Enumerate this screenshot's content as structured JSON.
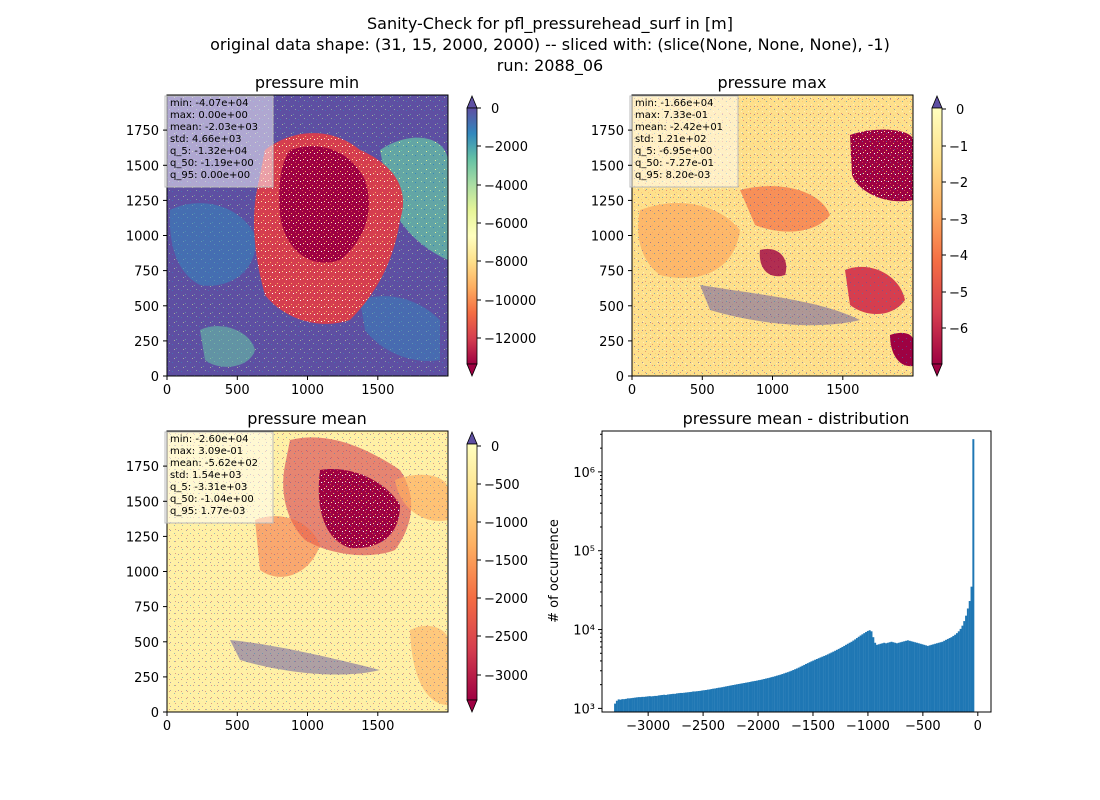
{
  "suptitle": {
    "line1": "Sanity-Check for pfl_pressurehead_surf in [m]",
    "line2": "original data shape: (31, 15, 2000, 2000) -- sliced with: (slice(None, None, None), -1)",
    "line3": "run: 2088_06"
  },
  "chart_data": [
    {
      "type": "heatmap",
      "title": "pressure min",
      "x_ticks": [
        "0",
        "500",
        "1000",
        "1500"
      ],
      "y_ticks": [
        "0",
        "250",
        "500",
        "750",
        "1000",
        "1250",
        "1500",
        "1750"
      ],
      "xlim": [
        0,
        2000
      ],
      "ylim": [
        0,
        2000
      ],
      "colormap": "Spectral",
      "colorbar_range": [
        -13500,
        0
      ],
      "colorbar_extend": "both",
      "colorbar_ticks": [
        0,
        -2000,
        -4000,
        -6000,
        -8000,
        -10000,
        -12000
      ],
      "colorbar_tick_labels": [
        "0",
        "−2000",
        "−4000",
        "−6000",
        "−8000",
        "−10000",
        "−12000"
      ],
      "stats": [
        "min: -4.07e+04",
        "max: 0.00e+00",
        "mean: -2.03e+03",
        "std: 4.66e+03",
        "q_5: -1.32e+04",
        "q_50: -1.19e+00",
        "q_95: 0.00e+00"
      ]
    },
    {
      "type": "heatmap",
      "title": "pressure max",
      "x_ticks": [
        "0",
        "500",
        "1000",
        "1500"
      ],
      "y_ticks": [
        "0",
        "250",
        "500",
        "750",
        "1000",
        "1250",
        "1500",
        "1750"
      ],
      "xlim": [
        0,
        2000
      ],
      "ylim": [
        0,
        2000
      ],
      "colormap": "Spectral",
      "colorbar_range": [
        -7,
        0
      ],
      "colorbar_extend": "both",
      "colorbar_ticks": [
        0,
        -1,
        -2,
        -3,
        -4,
        -5,
        -6
      ],
      "colorbar_tick_labels": [
        "0",
        "−1",
        "−2",
        "−3",
        "−4",
        "−5",
        "−6"
      ],
      "stats": [
        "min: -1.66e+04",
        "max: 7.33e-01",
        "mean: -2.42e+01",
        "std: 1.21e+02",
        "q_5: -6.95e+00",
        "q_50: -7.27e-01",
        "q_95: 8.20e-03"
      ]
    },
    {
      "type": "heatmap",
      "title": "pressure mean",
      "x_ticks": [
        "0",
        "500",
        "1000",
        "1500"
      ],
      "y_ticks": [
        "0",
        "250",
        "500",
        "750",
        "1000",
        "1250",
        "1500",
        "1750"
      ],
      "xlim": [
        0,
        2000
      ],
      "ylim": [
        0,
        2000
      ],
      "colormap": "Spectral",
      "colorbar_range": [
        -3400,
        0
      ],
      "colorbar_extend": "both",
      "colorbar_ticks": [
        0,
        -500,
        -1000,
        -1500,
        -2000,
        -2500,
        -3000
      ],
      "colorbar_tick_labels": [
        "0",
        "−500",
        "−1000",
        "−1500",
        "−2000",
        "−2500",
        "−3000"
      ],
      "stats": [
        "min: -2.60e+04",
        "max: 3.09e-01",
        "mean: -5.62e+02",
        "std: 1.54e+03",
        "q_5: -3.31e+03",
        "q_50: -1.04e+00",
        "q_95: 1.77e-03"
      ]
    },
    {
      "type": "bar",
      "title": "pressure mean - distribution",
      "ylabel": "# of occurrence",
      "xlabel": "",
      "yscale": "log",
      "xlim": [
        -3420,
        120
      ],
      "ylim": [
        900,
        3300000
      ],
      "x_ticks": [
        -3000,
        -2500,
        -2000,
        -1500,
        -1000,
        -500,
        0
      ],
      "x_tick_labels": [
        "−3000",
        "−2500",
        "−2000",
        "−1500",
        "−1000",
        "−500",
        "0"
      ],
      "y_ticks": [
        1000,
        10000,
        100000,
        1000000
      ],
      "y_tick_labels": [
        "10³",
        "10⁴",
        "10⁵",
        "10⁶"
      ],
      "bar_color": "#1f77b4",
      "histogram": {
        "bin_start": -3310,
        "bin_width": 16.55,
        "counts": [
          1150,
          1250,
          1300,
          1290,
          1310,
          1310,
          1320,
          1340,
          1340,
          1350,
          1360,
          1370,
          1380,
          1390,
          1390,
          1400,
          1400,
          1410,
          1420,
          1430,
          1420,
          1430,
          1440,
          1440,
          1460,
          1470,
          1480,
          1490,
          1480,
          1500,
          1510,
          1520,
          1530,
          1530,
          1550,
          1560,
          1570,
          1570,
          1580,
          1590,
          1600,
          1610,
          1620,
          1640,
          1640,
          1650,
          1660,
          1670,
          1690,
          1700,
          1710,
          1730,
          1740,
          1760,
          1780,
          1790,
          1810,
          1830,
          1840,
          1860,
          1880,
          1900,
          1920,
          1940,
          1960,
          1980,
          2000,
          2020,
          2040,
          2060,
          2080,
          2100,
          2120,
          2140,
          2160,
          2190,
          2210,
          2230,
          2250,
          2280,
          2300,
          2330,
          2360,
          2390,
          2420,
          2450,
          2490,
          2520,
          2560,
          2600,
          2640,
          2680,
          2730,
          2780,
          2830,
          2880,
          2940,
          3000,
          3070,
          3140,
          3210,
          3290,
          3380,
          3470,
          3560,
          3660,
          3750,
          3850,
          3950,
          4040,
          4140,
          4230,
          4330,
          4430,
          4530,
          4630,
          4730,
          4850,
          4980,
          5110,
          5240,
          5380,
          5530,
          5680,
          5850,
          6020,
          6200,
          6400,
          6600,
          6800,
          7000,
          7250,
          7500,
          7800,
          8100,
          8400,
          8700,
          9000,
          9300,
          9600,
          9800,
          9500,
          8000,
          6800,
          6400,
          6500,
          6600,
          6700,
          6800,
          6700,
          6800,
          6900,
          7000,
          6900,
          6800,
          6700,
          6800,
          6900,
          7000,
          7100,
          7200,
          7300,
          7200,
          7100,
          7000,
          6900,
          6800,
          6700,
          6600,
          6500,
          6400,
          6300,
          6200,
          6300,
          6400,
          6500,
          6600,
          6700,
          6800,
          6900,
          7000,
          7200,
          7400,
          7600,
          7800,
          8000,
          8300,
          8600,
          9000,
          9500,
          10200,
          11200,
          12800,
          15000,
          18500,
          23000,
          35000,
          2600000
        ]
      }
    }
  ]
}
